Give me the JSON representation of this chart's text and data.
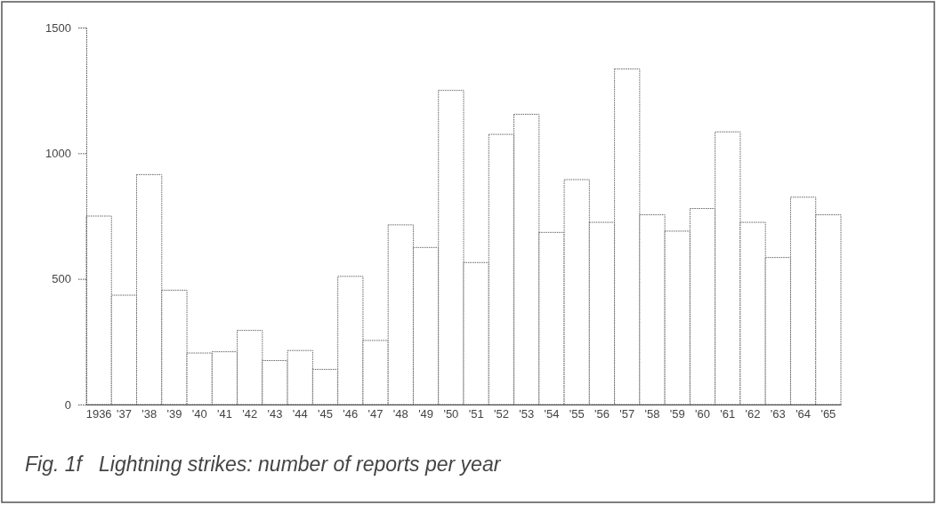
{
  "chart_data": {
    "type": "bar",
    "title": "Fig. 1f   Lightning strikes: number of reports per year",
    "categories": [
      "1936",
      "'37",
      "'38",
      "'39",
      "'40",
      "'41",
      "'42",
      "'43",
      "'44",
      "'45",
      "'46",
      "'47",
      "'48",
      "'49",
      "'50",
      "'51",
      "'52",
      "'53",
      "'54",
      "'55",
      "'56",
      "'57",
      "'58",
      "'59",
      "'60",
      "'61",
      "'62",
      "'63",
      "'64",
      "'65"
    ],
    "values": [
      750,
      435,
      915,
      455,
      205,
      210,
      295,
      175,
      215,
      140,
      510,
      255,
      715,
      625,
      1250,
      565,
      1075,
      1155,
      685,
      895,
      725,
      1335,
      755,
      690,
      780,
      1085,
      725,
      585,
      825,
      755
    ],
    "color": "#ffffff",
    "ylim": [
      0,
      1500
    ],
    "yticks": [
      0,
      500,
      1000,
      1500
    ],
    "grid": false
  }
}
